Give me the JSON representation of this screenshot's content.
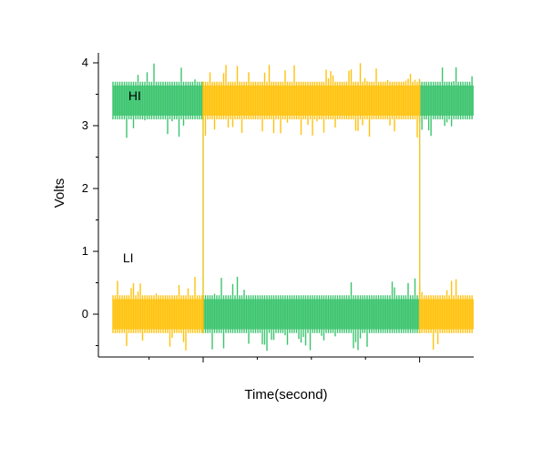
{
  "chart_data": {
    "type": "line",
    "title": "",
    "xlabel": "Time(second)",
    "ylabel": "Volts",
    "ylim": [
      -0.65,
      4.2
    ],
    "xlim": [
      -0.05,
      1.0
    ],
    "y_ticks": [
      0,
      1,
      2,
      3,
      4
    ],
    "y_tick_labels": [
      "0",
      "1",
      "2",
      "3",
      "4"
    ],
    "x_major_ticks": [
      0.25,
      0.85
    ],
    "x_tick_labels": [],
    "grid": false,
    "annotations": [
      {
        "text": "HI",
        "x": 0.04,
        "y": 3.48
      },
      {
        "text": "LI",
        "x": 0.025,
        "y": 0.9
      }
    ],
    "series": [
      {
        "color": "#3CC46E",
        "segments": [
          {
            "x_start": 0.0,
            "x_end": 0.25,
            "level": 3.4,
            "noise_band": 0.3,
            "spike_range": 0.6
          },
          {
            "x_start": 0.25,
            "x_end": 0.85,
            "level": 0.0,
            "noise_band": 0.3,
            "spike_range": 0.6
          },
          {
            "x_start": 0.85,
            "x_end": 1.0,
            "level": 3.4,
            "noise_band": 0.3,
            "spike_range": 0.6
          }
        ]
      },
      {
        "color": "#FFC20E",
        "segments": [
          {
            "x_start": 0.0,
            "x_end": 0.25,
            "level": 0.0,
            "noise_band": 0.3,
            "spike_range": 0.6
          },
          {
            "x_start": 0.25,
            "x_end": 0.85,
            "level": 3.4,
            "noise_band": 0.3,
            "spike_range": 0.6
          },
          {
            "x_start": 0.85,
            "x_end": 1.0,
            "level": 0.0,
            "noise_band": 0.3,
            "spike_range": 0.6
          }
        ]
      }
    ]
  }
}
